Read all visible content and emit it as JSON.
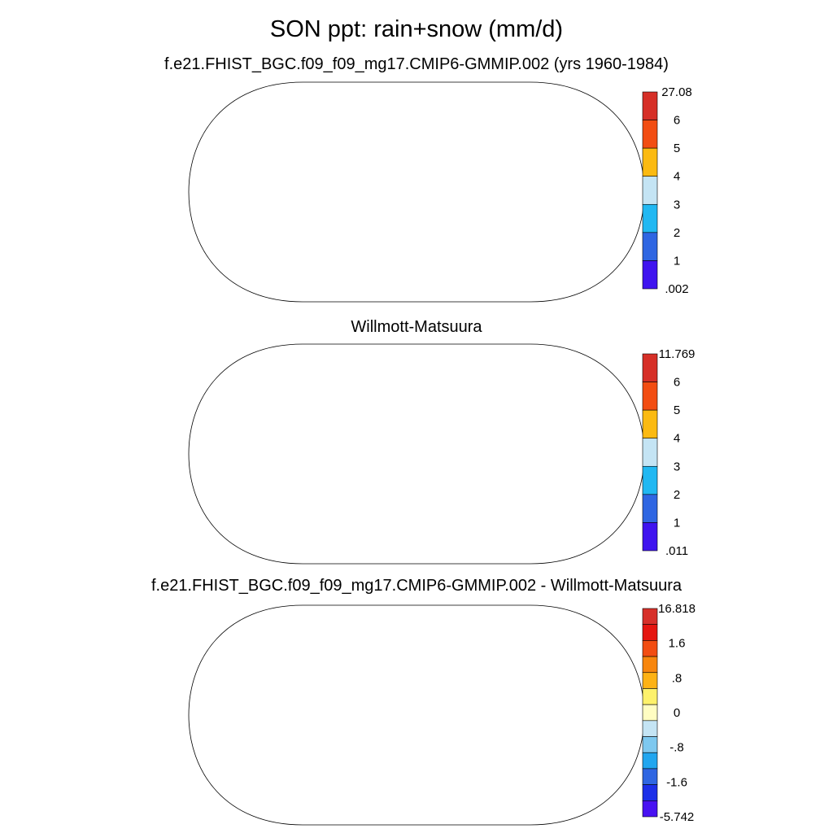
{
  "title": "SON ppt: rain+snow (mm/d)",
  "panels": [
    {
      "title": "f.e21.FHIST_BGC.f09_f09_mg17.CMIP6-GMMIP.002 (yrs 1960-1984)",
      "colorbar": {
        "labels": [
          "27.08",
          "6",
          "5",
          "4",
          "3",
          "2",
          "1",
          ".002"
        ],
        "colors": [
          "#d62f27",
          "#f24d12",
          "#fbba12",
          "#c4e4f4",
          "#21b8f2",
          "#2f66e2",
          "#3f14ef"
        ]
      },
      "land_colors": {
        "polar": "#3f14ef",
        "temperate": "#3f14ef",
        "tropics": "#d62f27",
        "sahara": "#3f14ef",
        "monsoon": "#f24d12",
        "australia": "#2f66e2"
      }
    },
    {
      "title": "Willmott-Matsuura",
      "colorbar": {
        "labels": [
          "11.769",
          "6",
          "5",
          "4",
          "3",
          "2",
          "1",
          ".011"
        ],
        "colors": [
          "#d62f27",
          "#f24d12",
          "#fbba12",
          "#c4e4f4",
          "#21b8f2",
          "#2f66e2",
          "#3f14ef"
        ]
      },
      "land_colors": {
        "polar": "#3f14ef",
        "temperate": "#2f66e2",
        "tropics": "#f24d12",
        "sahara": "#3f14ef",
        "monsoon": "#fbba12",
        "australia": "#3f14ef"
      }
    },
    {
      "title": "f.e21.FHIST_BGC.f09_f09_mg17.CMIP6-GMMIP.002 - Willmott-Matsuura",
      "colorbar": {
        "labels": [
          "16.818",
          "",
          "1.6",
          "",
          ".8",
          "",
          "0",
          "",
          "-.8",
          "",
          "-1.6",
          "",
          "-5.742"
        ],
        "colors": [
          "#d7302a",
          "#e51610",
          "#f24d12",
          "#f7860e",
          "#fdb214",
          "#fdf16b",
          "#fffdc2",
          "#c4e4f4",
          "#7ec8ef",
          "#21a6ef",
          "#2f66e2",
          "#1c2fe8",
          "#4812f2"
        ]
      },
      "land_colors": {
        "polar": "#fdf16b",
        "temperate": "#c4e4f4",
        "tropics": "#d7302a",
        "sahara": "#fffdc2",
        "monsoon": "#f24d12",
        "australia": "#fdb214"
      }
    }
  ]
}
